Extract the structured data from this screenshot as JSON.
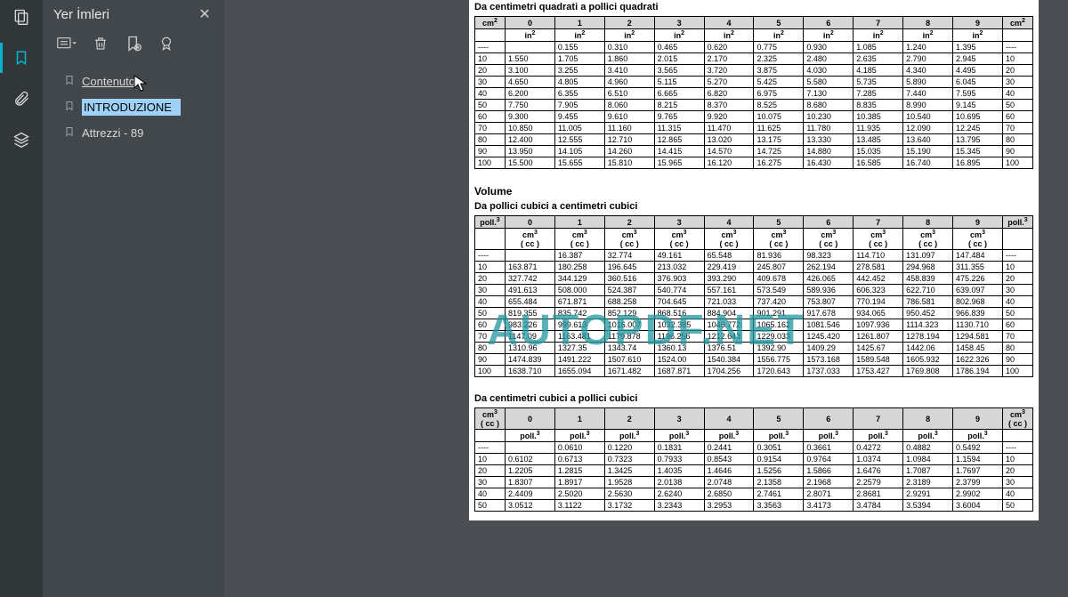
{
  "sidebar": {
    "title": "Yer İmleri",
    "items": [
      {
        "label": "Contenuto",
        "selected": false,
        "underline": true
      },
      {
        "label": "INTRODUZIONE",
        "selected": true,
        "underline": false
      },
      {
        "label": "Attrezzi - 89",
        "selected": false,
        "underline": false
      }
    ]
  },
  "watermark": "AUTOPDF.NET",
  "doc": {
    "section1": {
      "title": "Da centimetri quadrati a pollici quadrati",
      "rowHead": "cm²",
      "subHead": "in²",
      "cols": [
        "0",
        "1",
        "2",
        "3",
        "4",
        "5",
        "6",
        "7",
        "8",
        "9"
      ],
      "rows": [
        {
          "k": "----",
          "v": [
            "",
            "0.155",
            "0.310",
            "0.465",
            "0.620",
            "0.775",
            "0.930",
            "1.085",
            "1.240",
            "1.395"
          ],
          "r": "----"
        },
        {
          "k": "10",
          "v": [
            "1.550",
            "1.705",
            "1.860",
            "2.015",
            "2.170",
            "2.325",
            "2.480",
            "2.635",
            "2.790",
            "2.945"
          ],
          "r": "10"
        },
        {
          "k": "20",
          "v": [
            "3.100",
            "3.255",
            "3.410",
            "3.565",
            "3.720",
            "3.875",
            "4.030",
            "4.185",
            "4.340",
            "4.495"
          ],
          "r": "20"
        },
        {
          "k": "30",
          "v": [
            "4.650",
            "4.805",
            "4.960",
            "5.115",
            "5.270",
            "5.425",
            "5.580",
            "5.735",
            "5.890",
            "6.045"
          ],
          "r": "30"
        },
        {
          "k": "40",
          "v": [
            "6.200",
            "6.355",
            "6.510",
            "6.665",
            "6.820",
            "6.975",
            "7.130",
            "7.285",
            "7.440",
            "7.595"
          ],
          "r": "40"
        },
        {
          "k": "50",
          "v": [
            "7.750",
            "7.905",
            "8.060",
            "8.215",
            "8.370",
            "8.525",
            "8.680",
            "8.835",
            "8.990",
            "9.145"
          ],
          "r": "50"
        },
        {
          "k": "60",
          "v": [
            "9.300",
            "9.455",
            "9.610",
            "9.765",
            "9.920",
            "10.075",
            "10.230",
            "10.385",
            "10.540",
            "10.695"
          ],
          "r": "60"
        },
        {
          "k": "70",
          "v": [
            "10.850",
            "11.005",
            "11.160",
            "11.315",
            "11.470",
            "11.625",
            "11.780",
            "11.935",
            "12.090",
            "12.245"
          ],
          "r": "70"
        },
        {
          "k": "80",
          "v": [
            "12.400",
            "12.555",
            "12.710",
            "12.865",
            "13.020",
            "13.175",
            "13.330",
            "13.485",
            "13.640",
            "13.795"
          ],
          "r": "80"
        },
        {
          "k": "90",
          "v": [
            "13.950",
            "14.105",
            "14.260",
            "14.415",
            "14.570",
            "14.725",
            "14.880",
            "15.035",
            "15.190",
            "15.345"
          ],
          "r": "90"
        },
        {
          "k": "100",
          "v": [
            "15.500",
            "15.655",
            "15.810",
            "15.965",
            "16.120",
            "16.275",
            "16.430",
            "16.585",
            "16.740",
            "16.895"
          ],
          "r": "100"
        }
      ]
    },
    "volumeTitle": "Volume",
    "section2": {
      "title": "Da pollici cubici a centimetri cubici",
      "rowHead": "poll.³",
      "subHead": "cm³ ( cc )",
      "cols": [
        "0",
        "1",
        "2",
        "3",
        "4",
        "5",
        "6",
        "7",
        "8",
        "9"
      ],
      "rows": [
        {
          "k": "----",
          "v": [
            "",
            "16.387",
            "32.774",
            "49.161",
            "65.548",
            "81.936",
            "98.323",
            "114.710",
            "131.097",
            "147.484"
          ],
          "r": "----"
        },
        {
          "k": "10",
          "v": [
            "163.871",
            "180.258",
            "196.645",
            "213.032",
            "229.419",
            "245.807",
            "262.194",
            "278.581",
            "294.968",
            "311.355"
          ],
          "r": "10"
        },
        {
          "k": "20",
          "v": [
            "327.742",
            "344.129",
            "360.516",
            "376.903",
            "393.290",
            "409.678",
            "426.065",
            "442.452",
            "458.839",
            "475.226"
          ],
          "r": "20"
        },
        {
          "k": "30",
          "v": [
            "491.613",
            "508.000",
            "524.387",
            "540.774",
            "557.161",
            "573.549",
            "589.936",
            "606.323",
            "622.710",
            "639.097"
          ],
          "r": "30"
        },
        {
          "k": "40",
          "v": [
            "655.484",
            "671.871",
            "688.258",
            "704.645",
            "721.033",
            "737.420",
            "753.807",
            "770.194",
            "786.581",
            "802.968"
          ],
          "r": "40"
        },
        {
          "k": "50",
          "v": [
            "819.355",
            "835.742",
            "852.129",
            "868.516",
            "884.904",
            "901.291",
            "917.678",
            "934.065",
            "950.452",
            "966.839"
          ],
          "r": "50"
        },
        {
          "k": "60",
          "v": [
            "983.226",
            "999.613",
            "1016.007",
            "1032.385",
            "1048.772",
            "1065.162",
            "1081.546",
            "1097.936",
            "1114.323",
            "1130.710"
          ],
          "r": "60"
        },
        {
          "k": "70",
          "v": [
            "1147.09",
            "1163.481",
            "1179.878",
            "1196.256",
            "1212.643",
            "1229.033",
            "1245.420",
            "1261.807",
            "1278.194",
            "1294.581"
          ],
          "r": "70"
        },
        {
          "k": "80",
          "v": [
            "1310.96",
            "1327.35",
            "1343.74",
            "1360.13",
            "1376.51",
            "1392.90",
            "1409.29",
            "1425.67",
            "1442.06",
            "1458.45"
          ],
          "r": "80"
        },
        {
          "k": "90",
          "v": [
            "1474.839",
            "1491.222",
            "1507.610",
            "1524.00",
            "1540.384",
            "1556.775",
            "1573.168",
            "1589.548",
            "1605.932",
            "1622.326"
          ],
          "r": "90"
        },
        {
          "k": "100",
          "v": [
            "1638.710",
            "1655.094",
            "1671.482",
            "1687.871",
            "1704.256",
            "1720.643",
            "1737.033",
            "1753.427",
            "1769.808",
            "1786.194"
          ],
          "r": "100"
        }
      ]
    },
    "section3": {
      "title": "Da centimetri cubici a pollici cubici",
      "rowHead": "cm³ ( cc )",
      "subHead": "poll.³",
      "cols": [
        "0",
        "1",
        "2",
        "3",
        "4",
        "5",
        "6",
        "7",
        "8",
        "9"
      ],
      "rows": [
        {
          "k": "----",
          "v": [
            "",
            "0.0610",
            "0.1220",
            "0.1831",
            "0.2441",
            "0.3051",
            "0.3661",
            "0.4272",
            "0.4882",
            "0.5492"
          ],
          "r": "----"
        },
        {
          "k": "10",
          "v": [
            "0.6102",
            "0.6713",
            "0.7323",
            "0.7933",
            "0.8543",
            "0.9154",
            "0.9764",
            "1.0374",
            "1.0984",
            "1.1594"
          ],
          "r": "10"
        },
        {
          "k": "20",
          "v": [
            "1.2205",
            "1.2815",
            "1.3425",
            "1.4035",
            "1.4646",
            "1.5256",
            "1.5866",
            "1.6476",
            "1.7087",
            "1.7697"
          ],
          "r": "20"
        },
        {
          "k": "30",
          "v": [
            "1.8307",
            "1.8917",
            "1.9528",
            "2.0138",
            "2.0748",
            "2.1358",
            "2.1968",
            "2.2579",
            "2.3189",
            "2.3799"
          ],
          "r": "30"
        },
        {
          "k": "40",
          "v": [
            "2.4409",
            "2.5020",
            "2.5630",
            "2.6240",
            "2.6850",
            "2.7461",
            "2.8071",
            "2.8681",
            "2.9291",
            "2.9902"
          ],
          "r": "40"
        },
        {
          "k": "50",
          "v": [
            "3.0512",
            "3.1122",
            "3.1732",
            "3.2343",
            "3.2953",
            "3.3563",
            "3.4173",
            "3.4784",
            "3.5394",
            "3.6004"
          ],
          "r": "50"
        }
      ]
    }
  }
}
